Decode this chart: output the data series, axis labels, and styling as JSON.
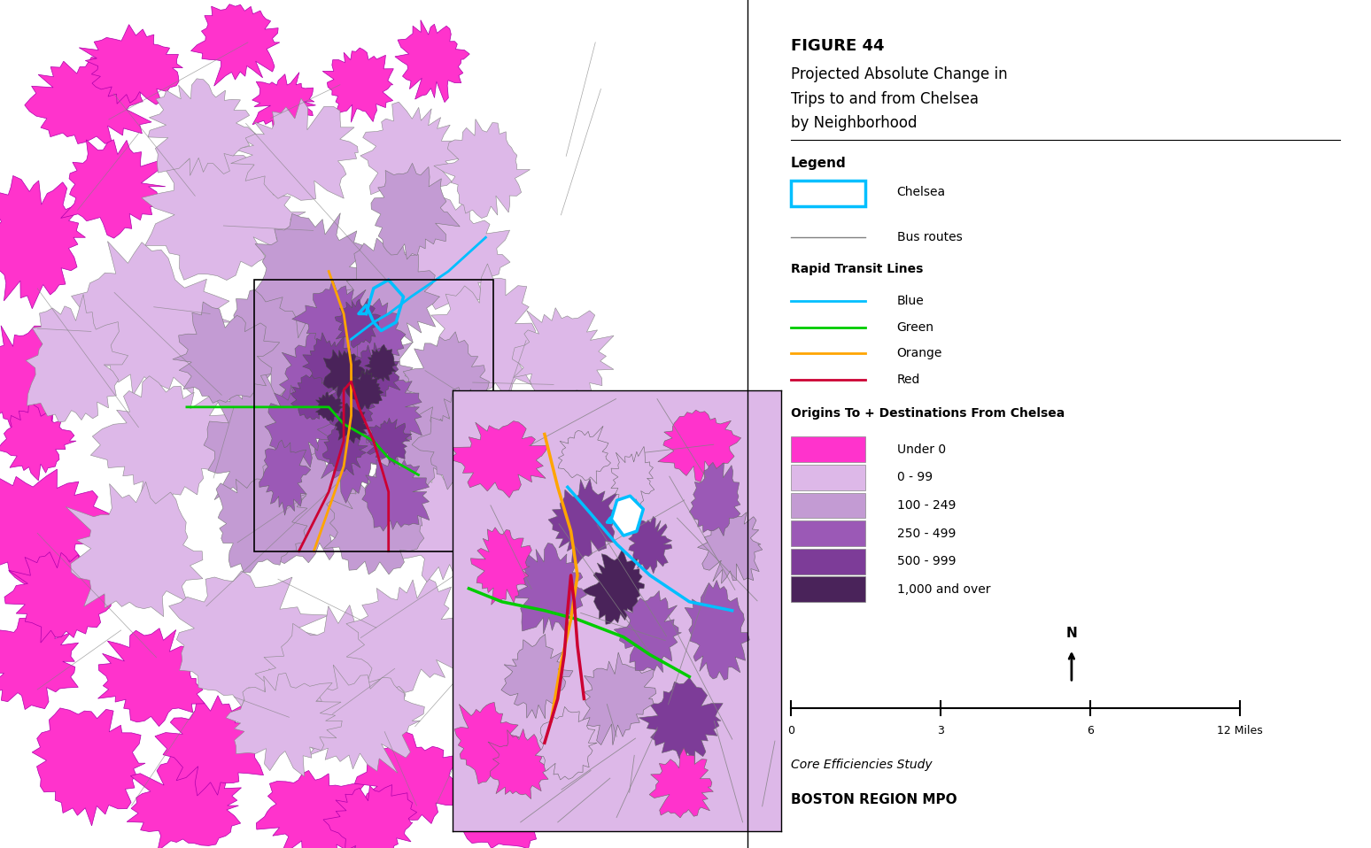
{
  "title_line1": "FIGURE 44",
  "title_line2": "Projected Absolute Change in",
  "title_line3": "Trips to and from Chelsea",
  "title_line4": "by Neighborhood",
  "legend_title": "Legend",
  "chelsea_label": "Chelsea",
  "bus_routes_label": "Bus routes",
  "rapid_transit_label": "Rapid Transit Lines",
  "blue_label": "Blue",
  "green_label": "Green",
  "orange_label": "Orange",
  "red_label": "Red",
  "choropleth_title": "Origins To + Destinations From Chelsea",
  "categories": [
    "Under 0",
    "0 - 99",
    "100 - 249",
    "250 - 499",
    "500 - 999",
    "1,000 and over"
  ],
  "category_colors": [
    "#FF33CC",
    "#DDB8E8",
    "#C39BD3",
    "#9B59B6",
    "#7D3C98",
    "#4A235A"
  ],
  "chelsea_color": "#00BFFF",
  "bus_route_color": "#808080",
  "blue_line_color": "#00BFFF",
  "green_line_color": "#00CC00",
  "orange_line_color": "#FFA500",
  "red_line_color": "#CC0033",
  "background_color": "#FFFFFF",
  "panel_background": "#FFFFFF",
  "border_color": "#000000",
  "scale_label": "0        3        6                    12 Miles",
  "source_label": "Core Efficiencies Study",
  "org_label": "BOSTON REGION MPO"
}
